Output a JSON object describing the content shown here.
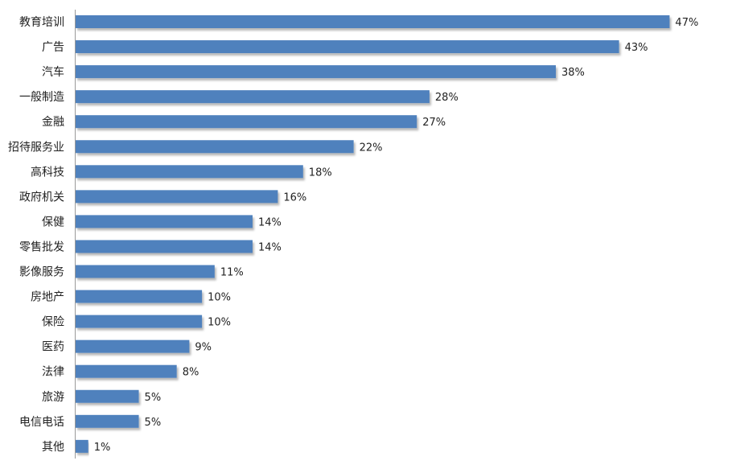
{
  "chart_data": {
    "type": "bar",
    "orientation": "horizontal",
    "categories": [
      "教育培训",
      "广告",
      "汽车",
      "一般制造",
      "金融",
      "招待服务业",
      "高科技",
      "政府机关",
      "保健",
      "零售批发",
      "影像服务",
      "房地产",
      "保险",
      "医药",
      "法律",
      "旅游",
      "电信电话",
      "其他"
    ],
    "values": [
      47,
      43,
      38,
      28,
      27,
      22,
      18,
      16,
      14,
      14,
      11,
      10,
      10,
      9,
      8,
      5,
      5,
      1
    ],
    "value_labels": [
      "47%",
      "43%",
      "38%",
      "28%",
      "27%",
      "22%",
      "18%",
      "16%",
      "14%",
      "14%",
      "11%",
      "10%",
      "10%",
      "9%",
      "8%",
      "5%",
      "5%",
      "1%"
    ],
    "unit": "%",
    "xlim": [
      0,
      48.5
    ],
    "grid": false,
    "legend": "none",
    "bar_color": "#4f81bd",
    "bar_shadow_color": "#b8b8b8",
    "axis_color": "#9a9a9a"
  }
}
